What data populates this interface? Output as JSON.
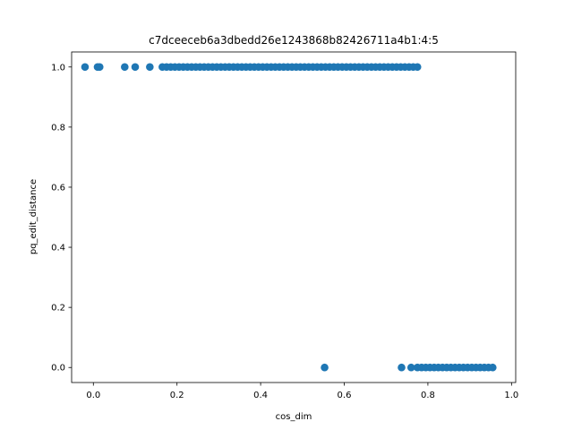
{
  "chart_data": {
    "type": "scatter",
    "title": "c7dceeceb6a3dbedd26e1243868b82426711a4b1:4:5",
    "xlabel": "cos_dim",
    "ylabel": "pq_edit_distance",
    "xlim": [
      -0.052,
      1.01
    ],
    "ylim": [
      -0.05,
      1.05
    ],
    "xticks": [
      0.0,
      0.2,
      0.4,
      0.6,
      0.8,
      1.0
    ],
    "xtick_labels": [
      "0.0",
      "0.2",
      "0.4",
      "0.6",
      "0.8",
      "1.0"
    ],
    "yticks": [
      0.0,
      0.2,
      0.4,
      0.6,
      0.8,
      1.0
    ],
    "ytick_labels": [
      "0.0",
      "0.2",
      "0.4",
      "0.6",
      "0.8",
      "1.0"
    ],
    "grid": false,
    "marker_color": "#1f77b4",
    "series": [
      {
        "x": [
          -0.02,
          0.01,
          0.015,
          0.075,
          0.1,
          0.135,
          0.165,
          0.175,
          0.185,
          0.195,
          0.205,
          0.215,
          0.225,
          0.235,
          0.245,
          0.255,
          0.265,
          0.275,
          0.285,
          0.295,
          0.305,
          0.315,
          0.325,
          0.335,
          0.345,
          0.355,
          0.365,
          0.375,
          0.385,
          0.395,
          0.405,
          0.415,
          0.425,
          0.435,
          0.445,
          0.455,
          0.465,
          0.475,
          0.485,
          0.495,
          0.505,
          0.515,
          0.525,
          0.535,
          0.545,
          0.555,
          0.565,
          0.575,
          0.585,
          0.595,
          0.605,
          0.615,
          0.625,
          0.635,
          0.645,
          0.655,
          0.665,
          0.675,
          0.685,
          0.695,
          0.705,
          0.715,
          0.725,
          0.735,
          0.745,
          0.755,
          0.765,
          0.775,
          0.553,
          0.737,
          0.76,
          0.775,
          0.785,
          0.795,
          0.805,
          0.815,
          0.825,
          0.835,
          0.845,
          0.855,
          0.865,
          0.875,
          0.885,
          0.895,
          0.905,
          0.915,
          0.925,
          0.935,
          0.945,
          0.955
        ],
        "y": [
          1,
          1,
          1,
          1,
          1,
          1,
          1,
          1,
          1,
          1,
          1,
          1,
          1,
          1,
          1,
          1,
          1,
          1,
          1,
          1,
          1,
          1,
          1,
          1,
          1,
          1,
          1,
          1,
          1,
          1,
          1,
          1,
          1,
          1,
          1,
          1,
          1,
          1,
          1,
          1,
          1,
          1,
          1,
          1,
          1,
          1,
          1,
          1,
          1,
          1,
          1,
          1,
          1,
          1,
          1,
          1,
          1,
          1,
          1,
          1,
          1,
          1,
          1,
          1,
          1,
          1,
          1,
          1,
          0,
          0,
          0,
          0,
          0,
          0,
          0,
          0,
          0,
          0,
          0,
          0,
          0,
          0,
          0,
          0,
          0,
          0,
          0,
          0,
          0,
          0
        ]
      }
    ]
  }
}
